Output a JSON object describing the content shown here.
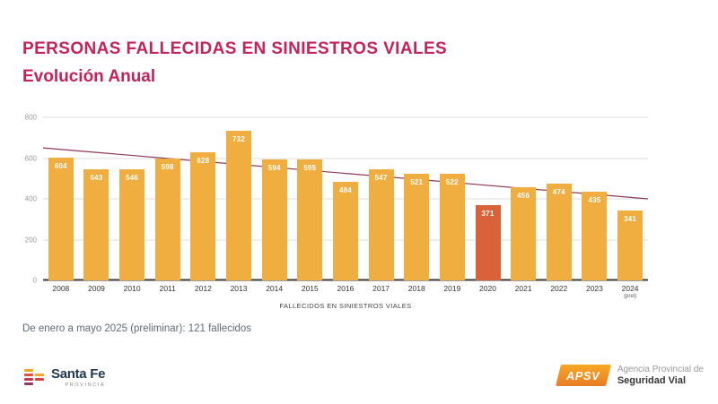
{
  "slide": {
    "title": "PERSONAS FALLECIDAS EN SINIESTROS VIALES",
    "subtitle": "Evolución Anual",
    "note": "De enero a mayo 2025 (preliminar): 121 fallecidos"
  },
  "chart_data": {
    "type": "bar",
    "title": "",
    "xlabel": "FALLECIDOS EN SINIESTROS VIALES",
    "ylabel": "",
    "ylim": [
      0,
      800
    ],
    "yticks": [
      0,
      200,
      400,
      600,
      800
    ],
    "grid": true,
    "categories": [
      "2008",
      "2009",
      "2010",
      "2011",
      "2012",
      "2013",
      "2014",
      "2015",
      "2016",
      "2017",
      "2018",
      "2019",
      "2020",
      "2021",
      "2022",
      "2023",
      "2024"
    ],
    "values": [
      604,
      543,
      546,
      598,
      628,
      732,
      594,
      595,
      484,
      547,
      521,
      522,
      371,
      456,
      474,
      435,
      341
    ],
    "last_category_suffix": "(prel)",
    "highlight_category": "2020",
    "trendline": {
      "start_value": 650,
      "end_value": 400
    },
    "colors": {
      "bar": "#efae3f",
      "highlight": "#d9623a",
      "trend": "#8f3a55",
      "grid": "#dcdcdc",
      "axis": "#3b3b3b"
    }
  },
  "footer": {
    "santafe": {
      "name": "Santa Fe",
      "sub": "PROVINCIA"
    },
    "apsv": {
      "badge": "APSV",
      "line1": "Agencia Provincial de",
      "line2": "Seguridad Vial"
    }
  },
  "theme": {
    "title_color": "#c32358",
    "background": "#ffffff"
  }
}
